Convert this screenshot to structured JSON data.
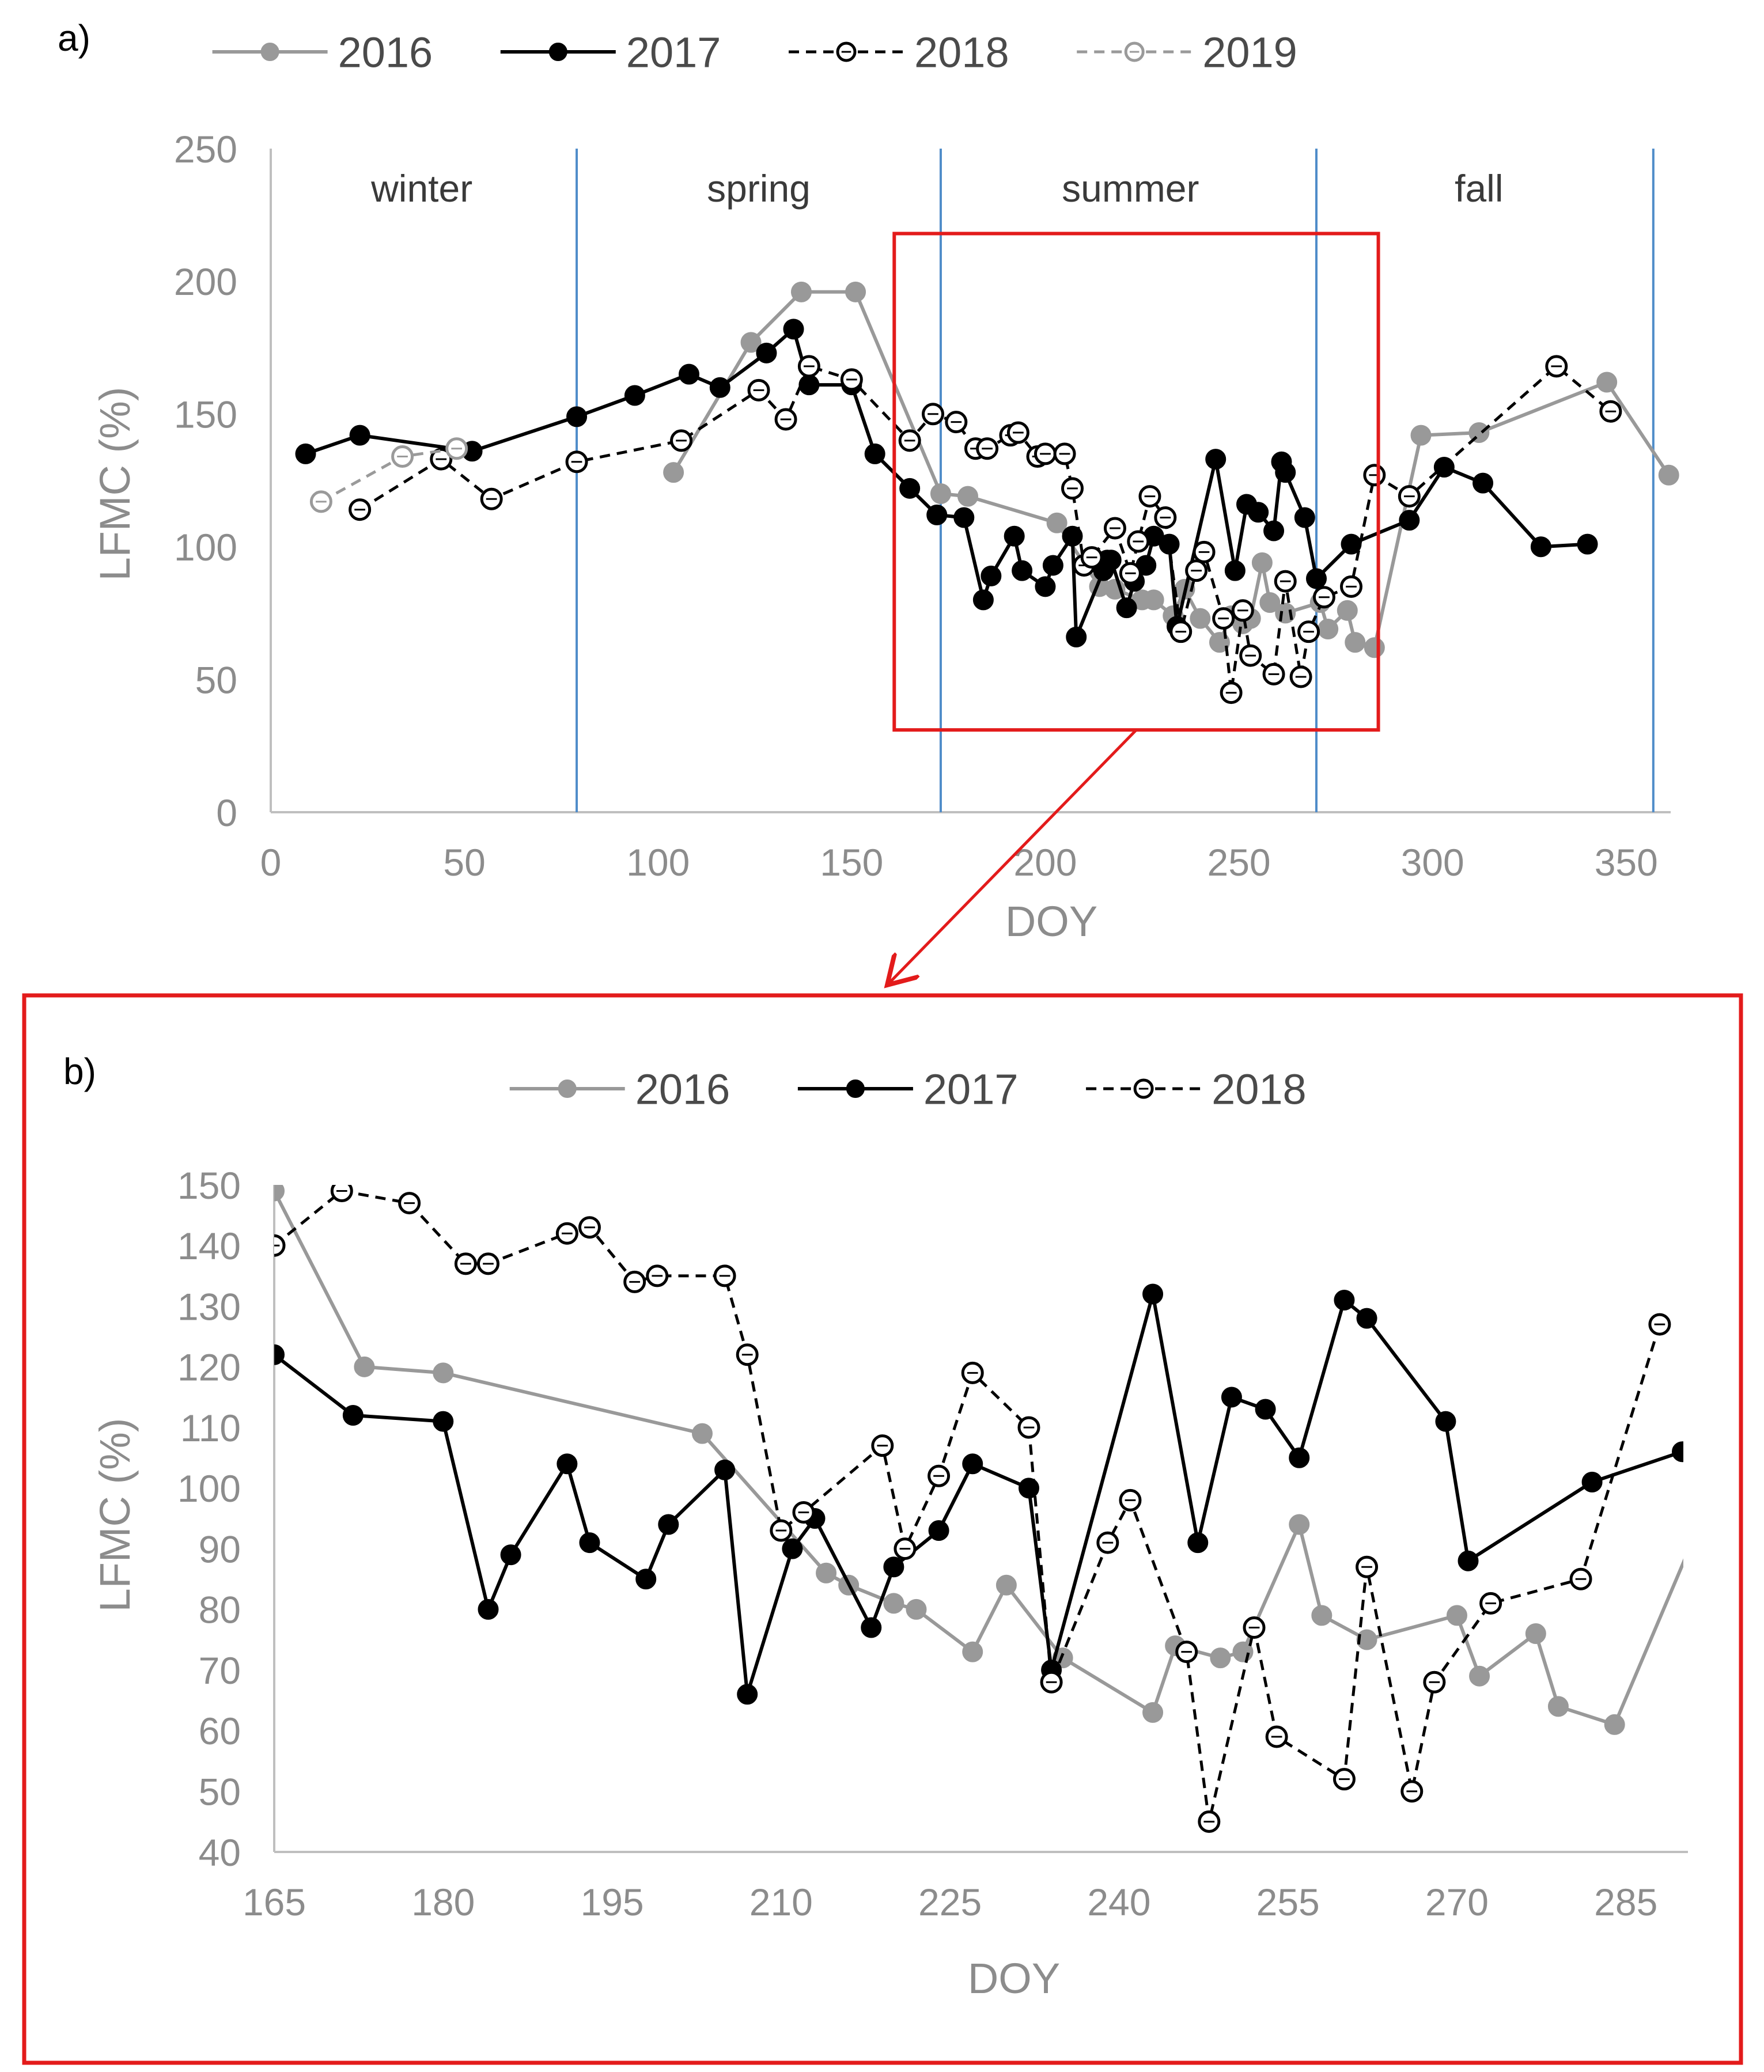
{
  "colors": {
    "s2016": "#999999",
    "s2017": "#000000",
    "s2018": "#000000",
    "s2019": "#9a9a9a",
    "season_line": "#4f8cc9",
    "highlight": "#e31b1b",
    "axis": "#bfbfbf",
    "text": "#8c8c8c"
  },
  "chart_data": [
    {
      "panel": "a)",
      "type": "line",
      "xlabel": "DOY",
      "ylabel": "LFMC (%)",
      "xlim": [
        0,
        360
      ],
      "ylim": [
        0,
        250
      ],
      "xticks": [
        "0",
        "50",
        "100",
        "150",
        "200",
        "250",
        "300",
        "350"
      ],
      "yticks": [
        "0",
        "50",
        "100",
        "150",
        "200",
        "250"
      ],
      "legend_position": "top",
      "season_boundaries": [
        79,
        173,
        270,
        357
      ],
      "seasons": [
        {
          "label": "winter",
          "x": 39
        },
        {
          "label": "spring",
          "x": 126
        },
        {
          "label": "summer",
          "x": 222
        },
        {
          "label": "fall",
          "x": 312
        }
      ],
      "highlight_box": {
        "x_range": [
          161,
          286
        ],
        "y_range": [
          31,
          218
        ]
      },
      "series": [
        {
          "name": "2016",
          "style": "solid-filled-gray",
          "points": [
            [
              104,
              128
            ],
            [
              124,
              177
            ],
            [
              137,
              196
            ],
            [
              151,
              196
            ],
            [
              173,
              120
            ],
            [
              180,
              119
            ],
            [
              203,
              109
            ],
            [
              214,
              85
            ],
            [
              218,
              84
            ],
            [
              225,
              80
            ],
            [
              228,
              80
            ],
            [
              233,
              74
            ],
            [
              236,
              84
            ],
            [
              240,
              73
            ],
            [
              245,
              64
            ],
            [
              248,
              74
            ],
            [
              251,
              71
            ],
            [
              253,
              73
            ],
            [
              256,
              94
            ],
            [
              258,
              79
            ],
            [
              262,
              75
            ],
            [
              271,
              79
            ],
            [
              273,
              69
            ],
            [
              278,
              76
            ],
            [
              280,
              64
            ],
            [
              285,
              62
            ],
            [
              297,
              142
            ],
            [
              312,
              143
            ],
            [
              345,
              162
            ],
            [
              361,
              127
            ]
          ]
        },
        {
          "name": "2017",
          "style": "solid-filled-black",
          "points": [
            [
              9,
              135
            ],
            [
              23,
              142
            ],
            [
              52,
              136
            ],
            [
              79,
              149
            ],
            [
              94,
              157
            ],
            [
              108,
              165
            ],
            [
              116,
              160
            ],
            [
              128,
              173
            ],
            [
              135,
              182
            ],
            [
              139,
              161
            ],
            [
              150,
              161
            ],
            [
              156,
              135
            ],
            [
              165,
              122
            ],
            [
              172,
              112
            ],
            [
              179,
              111
            ],
            [
              184,
              80
            ],
            [
              186,
              89
            ],
            [
              192,
              104
            ],
            [
              194,
              91
            ],
            [
              200,
              85
            ],
            [
              202,
              93
            ],
            [
              207,
              104
            ],
            [
              208,
              66
            ],
            [
              215,
              91
            ],
            [
              216,
              95
            ],
            [
              217,
              95
            ],
            [
              221,
              77
            ],
            [
              223,
              87
            ],
            [
              226,
              93
            ],
            [
              228,
              104
            ],
            [
              232,
              101
            ],
            [
              234,
              70
            ],
            [
              244,
              133
            ],
            [
              249,
              91
            ],
            [
              252,
              116
            ],
            [
              255,
              113
            ],
            [
              259,
              106
            ],
            [
              261,
              132
            ],
            [
              262,
              128
            ],
            [
              267,
              111
            ],
            [
              270,
              88
            ],
            [
              279,
              101
            ],
            [
              294,
              110
            ],
            [
              303,
              130
            ],
            [
              313,
              124
            ],
            [
              328,
              100
            ],
            [
              340,
              101
            ]
          ]
        },
        {
          "name": "2018",
          "style": "dashed-open-black",
          "points": [
            [
              23,
              114
            ],
            [
              44,
              133
            ],
            [
              57,
              118
            ],
            [
              79,
              132
            ],
            [
              106,
              140
            ],
            [
              126,
              159
            ],
            [
              133,
              148
            ],
            [
              139,
              168
            ],
            [
              150,
              163
            ],
            [
              165,
              140
            ],
            [
              171,
              150
            ],
            [
              177,
              147
            ],
            [
              182,
              137
            ],
            [
              185,
              137
            ],
            [
              191,
              142
            ],
            [
              193,
              143
            ],
            [
              198,
              134
            ],
            [
              200,
              135
            ],
            [
              205,
              135
            ],
            [
              207,
              122
            ],
            [
              210,
              93
            ],
            [
              212,
              96
            ],
            [
              218,
              107
            ],
            [
              222,
              90
            ],
            [
              224,
              102
            ],
            [
              227,
              119
            ],
            [
              231,
              111
            ],
            [
              235,
              68
            ],
            [
              239,
              91
            ],
            [
              241,
              98
            ],
            [
              246,
              73
            ],
            [
              248,
              45
            ],
            [
              251,
              76
            ],
            [
              253,
              59
            ],
            [
              259,
              52
            ],
            [
              262,
              87
            ],
            [
              266,
              51
            ],
            [
              268,
              68
            ],
            [
              272,
              81
            ],
            [
              279,
              85
            ],
            [
              285,
              127
            ],
            [
              294,
              119
            ],
            [
              332,
              168
            ],
            [
              346,
              151
            ]
          ]
        },
        {
          "name": "2019",
          "style": "dashed-open-gray",
          "points": [
            [
              13,
              117
            ],
            [
              34,
              134
            ],
            [
              48,
              137
            ]
          ]
        }
      ]
    },
    {
      "panel": "b)",
      "type": "line",
      "xlabel": "DOY",
      "ylabel": "LFMC (%)",
      "xlim": [
        165,
        290
      ],
      "ylim": [
        40,
        150
      ],
      "xticks": [
        "165",
        "180",
        "195",
        "210",
        "225",
        "240",
        "255",
        "270",
        "285"
      ],
      "yticks": [
        "40",
        "50",
        "60",
        "70",
        "80",
        "90",
        "100",
        "110",
        "120",
        "130",
        "140",
        "150"
      ],
      "legend_position": "top",
      "series": [
        {
          "name": "2016",
          "style": "solid-filled-gray",
          "points": [
            [
              165,
              149
            ],
            [
              173,
              120
            ],
            [
              180,
              119
            ],
            [
              203,
              109
            ],
            [
              214,
              86
            ],
            [
              216,
              84
            ],
            [
              220,
              81
            ],
            [
              222,
              80
            ],
            [
              227,
              73
            ],
            [
              230,
              84
            ],
            [
              235,
              72
            ],
            [
              243,
              63
            ],
            [
              245,
              74
            ],
            [
              249,
              72
            ],
            [
              251,
              73
            ],
            [
              256,
              94
            ],
            [
              258,
              79
            ],
            [
              262,
              75
            ],
            [
              270,
              79
            ],
            [
              272,
              69
            ],
            [
              277,
              76
            ],
            [
              279,
              64
            ],
            [
              284,
              61
            ],
            [
              292,
              96
            ]
          ]
        },
        {
          "name": "2017",
          "style": "solid-filled-black",
          "points": [
            [
              165,
              122
            ],
            [
              172,
              112
            ],
            [
              180,
              111
            ],
            [
              184,
              80
            ],
            [
              186,
              89
            ],
            [
              191,
              104
            ],
            [
              193,
              91
            ],
            [
              198,
              85
            ],
            [
              200,
              94
            ],
            [
              205,
              103
            ],
            [
              207,
              66
            ],
            [
              211,
              90
            ],
            [
              213,
              95
            ],
            [
              218,
              77
            ],
            [
              220,
              87
            ],
            [
              224,
              93
            ],
            [
              227,
              104
            ],
            [
              232,
              100
            ],
            [
              234,
              70
            ],
            [
              243,
              132
            ],
            [
              247,
              91
            ],
            [
              250,
              115
            ],
            [
              253,
              113
            ],
            [
              256,
              105
            ],
            [
              260,
              131
            ],
            [
              262,
              128
            ],
            [
              269,
              111
            ],
            [
              271,
              88
            ],
            [
              282,
              101
            ],
            [
              290,
              106
            ]
          ]
        },
        {
          "name": "2018",
          "style": "dashed-open-black",
          "points": [
            [
              165,
              140
            ],
            [
              171,
              149
            ],
            [
              177,
              147
            ],
            [
              182,
              137
            ],
            [
              184,
              137
            ],
            [
              191,
              142
            ],
            [
              193,
              143
            ],
            [
              197,
              134
            ],
            [
              199,
              135
            ],
            [
              205,
              135
            ],
            [
              207,
              122
            ],
            [
              210,
              93
            ],
            [
              212,
              96
            ],
            [
              219,
              107
            ],
            [
              221,
              90
            ],
            [
              224,
              102
            ],
            [
              227,
              119
            ],
            [
              232,
              110
            ],
            [
              234,
              68
            ],
            [
              239,
              91
            ],
            [
              241,
              98
            ],
            [
              246,
              73
            ],
            [
              248,
              45
            ],
            [
              252,
              77
            ],
            [
              254,
              59
            ],
            [
              260,
              52
            ],
            [
              262,
              87
            ],
            [
              266,
              50
            ],
            [
              268,
              68
            ],
            [
              273,
              81
            ],
            [
              281,
              85
            ],
            [
              288,
              127
            ]
          ]
        }
      ]
    }
  ]
}
